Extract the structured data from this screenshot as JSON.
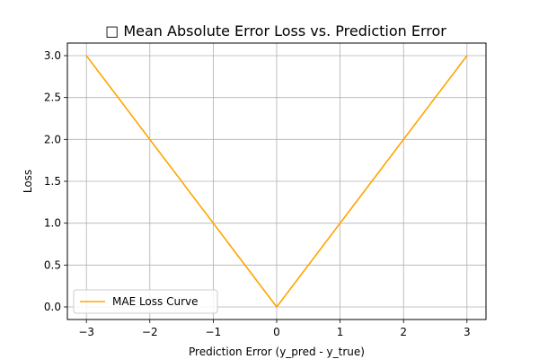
{
  "chart_data": {
    "type": "line",
    "title": "□ Mean Absolute Error Loss vs. Prediction Error",
    "xlabel": "Prediction Error (y_pred - y_true)",
    "ylabel": "Loss",
    "xlim": [
      -3.3,
      3.3
    ],
    "ylim": [
      -0.15,
      3.15
    ],
    "xticks": [
      -3,
      -2,
      -1,
      0,
      1,
      2,
      3
    ],
    "xtick_labels": [
      "−3",
      "−2",
      "−1",
      "0",
      "1",
      "2",
      "3"
    ],
    "yticks": [
      0.0,
      0.5,
      1.0,
      1.5,
      2.0,
      2.5,
      3.0
    ],
    "ytick_labels": [
      "0.0",
      "0.5",
      "1.0",
      "1.5",
      "2.0",
      "2.5",
      "3.0"
    ],
    "grid": true,
    "legend_position": "lower-left",
    "series": [
      {
        "name": "MAE Loss Curve",
        "color": "#FFA500",
        "x": [
          -3,
          -2,
          -1,
          0,
          1,
          2,
          3
        ],
        "y": [
          3,
          2,
          1,
          0,
          1,
          2,
          3
        ]
      }
    ]
  }
}
